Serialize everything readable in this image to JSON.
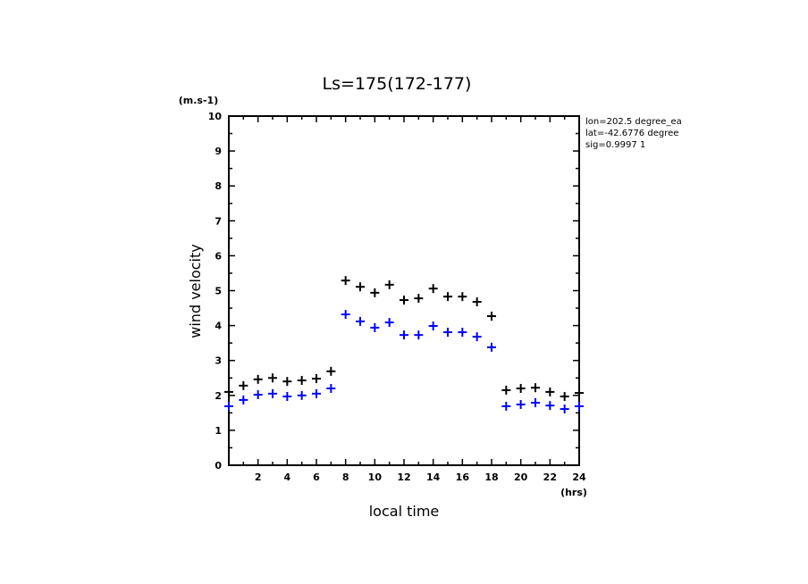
{
  "chart_data": {
    "type": "scatter",
    "title": "Ls=175(172-177)",
    "xlabel": "local time",
    "xunit": "(hrs)",
    "ylabel": "wind velocity",
    "yunit": "(m.s-1)",
    "xlim": [
      0,
      24
    ],
    "ylim": [
      0,
      10
    ],
    "xticks": [
      2,
      4,
      6,
      8,
      10,
      12,
      14,
      16,
      18,
      20,
      22,
      24
    ],
    "yticks": [
      0,
      1,
      2,
      3,
      4,
      5,
      6,
      7,
      8,
      9,
      10
    ],
    "grid": false,
    "info": [
      "lon=202.5 degree_ea",
      "lat=-42.6776 degree",
      "sig=0.9997 1"
    ],
    "x": [
      0,
      1,
      2,
      3,
      4,
      5,
      6,
      7,
      8,
      9,
      10,
      11,
      12,
      13,
      14,
      15,
      16,
      17,
      18,
      19,
      20,
      21,
      22,
      23,
      24
    ],
    "series": [
      {
        "name": "black",
        "color": "#000000",
        "values": [
          2.1,
          2.28,
          2.46,
          2.5,
          2.4,
          2.43,
          2.48,
          2.69,
          5.29,
          5.11,
          4.94,
          5.17,
          4.73,
          4.78,
          5.06,
          4.83,
          4.83,
          4.68,
          4.27,
          2.15,
          2.2,
          2.22,
          2.1,
          1.97,
          2.07
        ]
      },
      {
        "name": "blue",
        "color": "#0000ff",
        "values": [
          1.69,
          1.87,
          2.02,
          2.05,
          1.97,
          2.0,
          2.05,
          2.2,
          4.32,
          4.12,
          3.94,
          4.09,
          3.73,
          3.73,
          3.99,
          3.81,
          3.81,
          3.68,
          3.38,
          1.69,
          1.74,
          1.79,
          1.71,
          1.61,
          1.69
        ]
      }
    ]
  }
}
